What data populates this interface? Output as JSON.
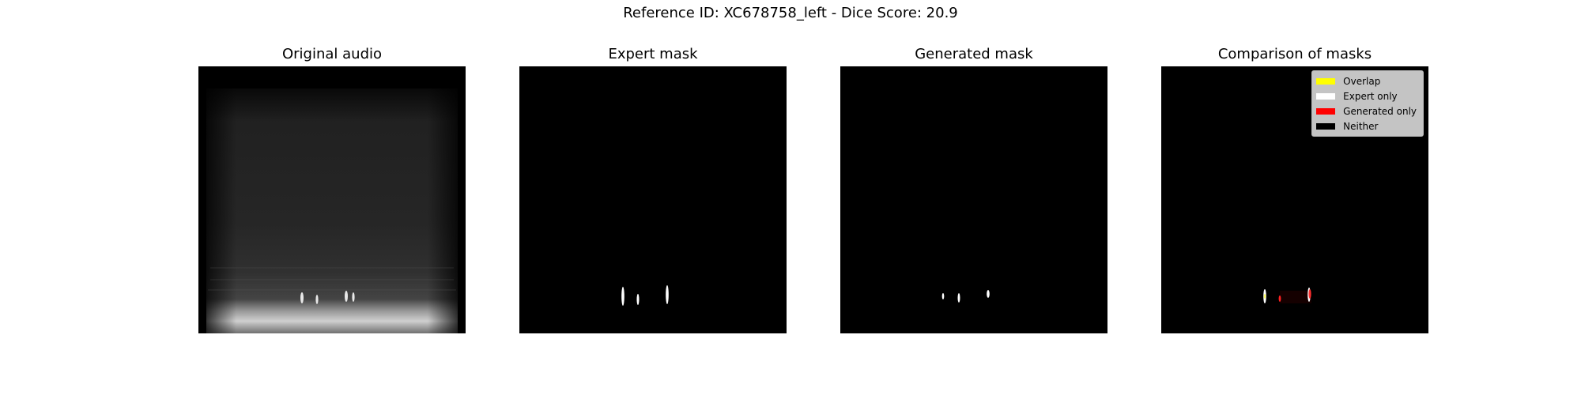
{
  "suptitle": "Reference ID: XC678758_left - Dice Score: 20.9",
  "panels": [
    {
      "title": "Original audio"
    },
    {
      "title": "Expert mask"
    },
    {
      "title": "Generated mask"
    },
    {
      "title": "Comparison of masks"
    }
  ],
  "chart_data": {
    "type": "heatmap",
    "title": "Reference ID: XC678758_left - Dice Score: 20.9",
    "dice_score": 20.9,
    "subplots": [
      {
        "title": "Original audio",
        "kind": "grayscale spectrogram",
        "axes": "off"
      },
      {
        "title": "Expert mask",
        "kind": "binary mask",
        "axes": "off"
      },
      {
        "title": "Generated mask",
        "kind": "binary mask",
        "axes": "off"
      },
      {
        "title": "Comparison of masks",
        "kind": "categorical overlay",
        "axes": "off",
        "legend_position": "upper-right"
      }
    ],
    "legend": [
      {
        "label": "Overlap",
        "color": "#ffff00"
      },
      {
        "label": "Expert only",
        "color": "#ffffff"
      },
      {
        "label": "Generated only",
        "color": "#ff0000"
      },
      {
        "label": "Neither",
        "color": "#000000"
      }
    ]
  }
}
